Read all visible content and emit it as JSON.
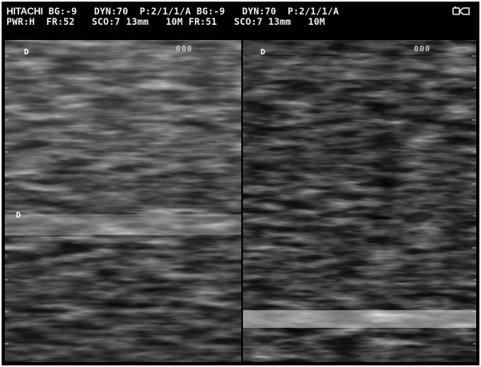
{
  "header": {
    "brand": "HITACHI",
    "line1_left": " BG:-9   DYN:70  P:2/1/1/A",
    "line1_right": "BG:-9   DYN:70  P:2/1/1/A",
    "line2_left": "PWR:H  FR:52   SCO:7 13mm   10M",
    "line2_right": "FR:51   SCO:7 13mm   10M",
    "probe_icon": "transducer-probe-icon"
  },
  "left_image": {
    "orientation_marker": "D",
    "focus_label": "000",
    "depth_marker": "D"
  },
  "right_image": {
    "orientation_marker": "D",
    "focus_label": "000"
  },
  "colors": {
    "background": "#000000",
    "text": "#f2f2f2"
  }
}
